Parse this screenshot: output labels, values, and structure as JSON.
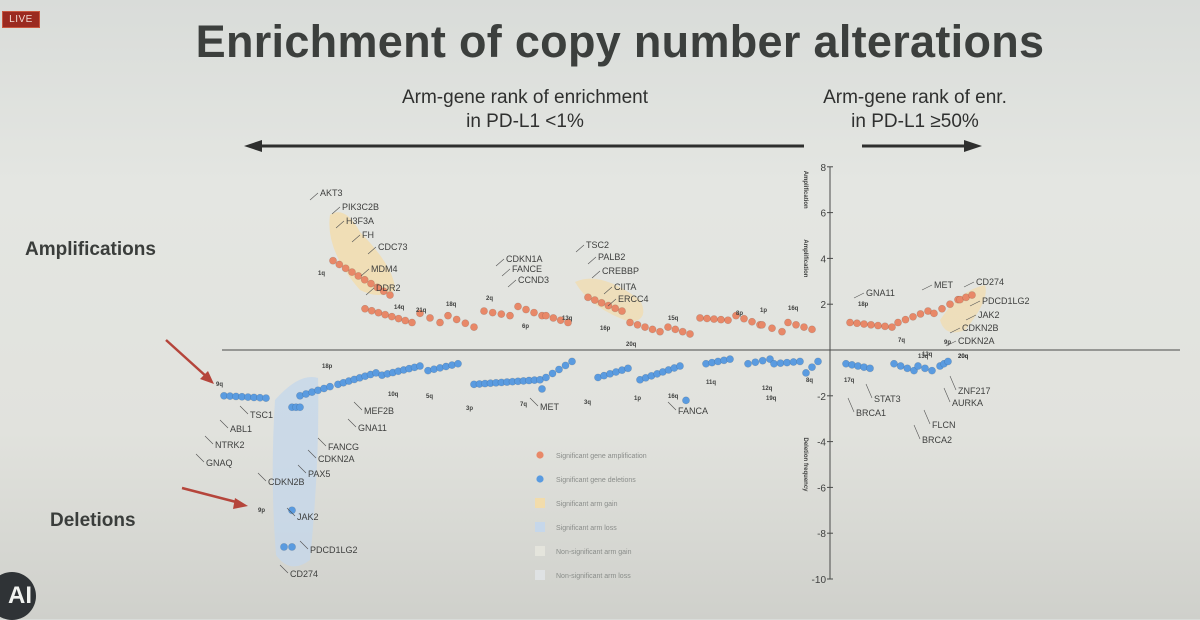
{
  "badge": "LIVE",
  "title": "Enrichment of copy number alterations",
  "header_left": {
    "line1": "Arm-gene rank of enrichment",
    "line2": "in PD-L1 <1%"
  },
  "header_right": {
    "line1": "Arm-gene rank of enr.",
    "line2": "in PD-L1 ≥50%"
  },
  "row_labels": {
    "amplifications": "Amplifications",
    "deletions": "Deletions"
  },
  "logo_text": "AI",
  "colors": {
    "amp": "#e88868",
    "del": "#5a9be0",
    "amp_shade": "#f2dcab",
    "del_shade": "#c6d7ea",
    "arrow": "#b5453b"
  },
  "chart_data": {
    "type": "scatter",
    "title": "Enrichment of copy number alterations",
    "ylabel": "",
    "ylim": [
      -10,
      8
    ],
    "yticks": [
      8,
      6,
      4,
      2,
      -2,
      -4,
      -6,
      -8,
      -10
    ],
    "yaxis_side_labels": [
      "Amplification",
      "Amplification",
      "Deletion frequency"
    ],
    "amp_genes_left": [
      {
        "gene": "AKT3",
        "y": 4.5
      },
      {
        "gene": "PIK3C2B",
        "y": 4.3
      },
      {
        "gene": "H3F3A",
        "y": 4.1
      },
      {
        "gene": "FH",
        "y": 3.9
      },
      {
        "gene": "CDC73",
        "y": 3.7
      },
      {
        "gene": "MDM4",
        "y": 3.3
      },
      {
        "gene": "DDR2",
        "y": 2.4
      },
      {
        "gene": "CDKN1A",
        "y": 2.1
      },
      {
        "gene": "FANCE",
        "y": 2.0
      },
      {
        "gene": "CCND3",
        "y": 1.9
      },
      {
        "gene": "TSC2",
        "y": 2.8
      },
      {
        "gene": "PALB2",
        "y": 2.5
      },
      {
        "gene": "CREBBP",
        "y": 2.2
      },
      {
        "gene": "CIITA",
        "y": 1.9
      },
      {
        "gene": "ERCC4",
        "y": 1.7
      }
    ],
    "amp_genes_right": [
      {
        "gene": "GNA11",
        "y": 1.8
      },
      {
        "gene": "MET",
        "y": 2.3
      },
      {
        "gene": "CD274",
        "y": 2.6
      },
      {
        "gene": "PDCD1LG2",
        "y": 2.4
      },
      {
        "gene": "JAK2",
        "y": 1.8
      },
      {
        "gene": "CDKN2B",
        "y": 1.5
      },
      {
        "gene": "CDKN2A",
        "y": 1.2
      }
    ],
    "del_genes_left": [
      {
        "gene": "TSC1",
        "y": -2.4
      },
      {
        "gene": "ABL1",
        "y": -2.4
      },
      {
        "gene": "NTRK2",
        "y": -2.4
      },
      {
        "gene": "GNAQ",
        "y": -2.4
      },
      {
        "gene": "MEF2B",
        "y": -2.1
      },
      {
        "gene": "GNA11",
        "y": -2.1
      },
      {
        "gene": "FANCG",
        "y": -2.5
      },
      {
        "gene": "CDKN2A",
        "y": -2.5
      },
      {
        "gene": "PAX5",
        "y": -2.5
      },
      {
        "gene": "CDKN2B",
        "y": -2.5
      },
      {
        "gene": "JAK2",
        "y": -7.0
      },
      {
        "gene": "PDCD1LG2",
        "y": -8.6
      },
      {
        "gene": "CD274",
        "y": -8.6
      },
      {
        "gene": "MET",
        "y": -2.3
      },
      {
        "gene": "FANCA",
        "y": -1.9
      }
    ],
    "del_genes_right": [
      {
        "gene": "STAT3",
        "y": -1.5
      },
      {
        "gene": "BRCA1",
        "y": -1.5
      },
      {
        "gene": "FLCN",
        "y": -1.3
      },
      {
        "gene": "BRCA2",
        "y": -1.3
      },
      {
        "gene": "ZNF217",
        "y": -0.9
      },
      {
        "gene": "AURKA",
        "y": -0.9
      }
    ],
    "arm_labels_amp": [
      "1q",
      "14q",
      "21q",
      "18q",
      "2q",
      "6p",
      "13q",
      "16p",
      "20q",
      "15q",
      "8p",
      "1p",
      "16q",
      "18p",
      "7q",
      "9p",
      "13q",
      "20q"
    ],
    "arm_labels_del": [
      "9q",
      "9p",
      "18p",
      "10q",
      "5q",
      "3p",
      "7q",
      "3q",
      "1p",
      "16q",
      "11q",
      "12q",
      "19q",
      "8q",
      "17q",
      "13q",
      "20q"
    ],
    "legend": [
      "Significant gene amplification",
      "Significant gene deletions",
      "Significant arm gain",
      "Significant arm loss",
      "Non-significant arm gain",
      "Non-significant arm loss"
    ]
  }
}
